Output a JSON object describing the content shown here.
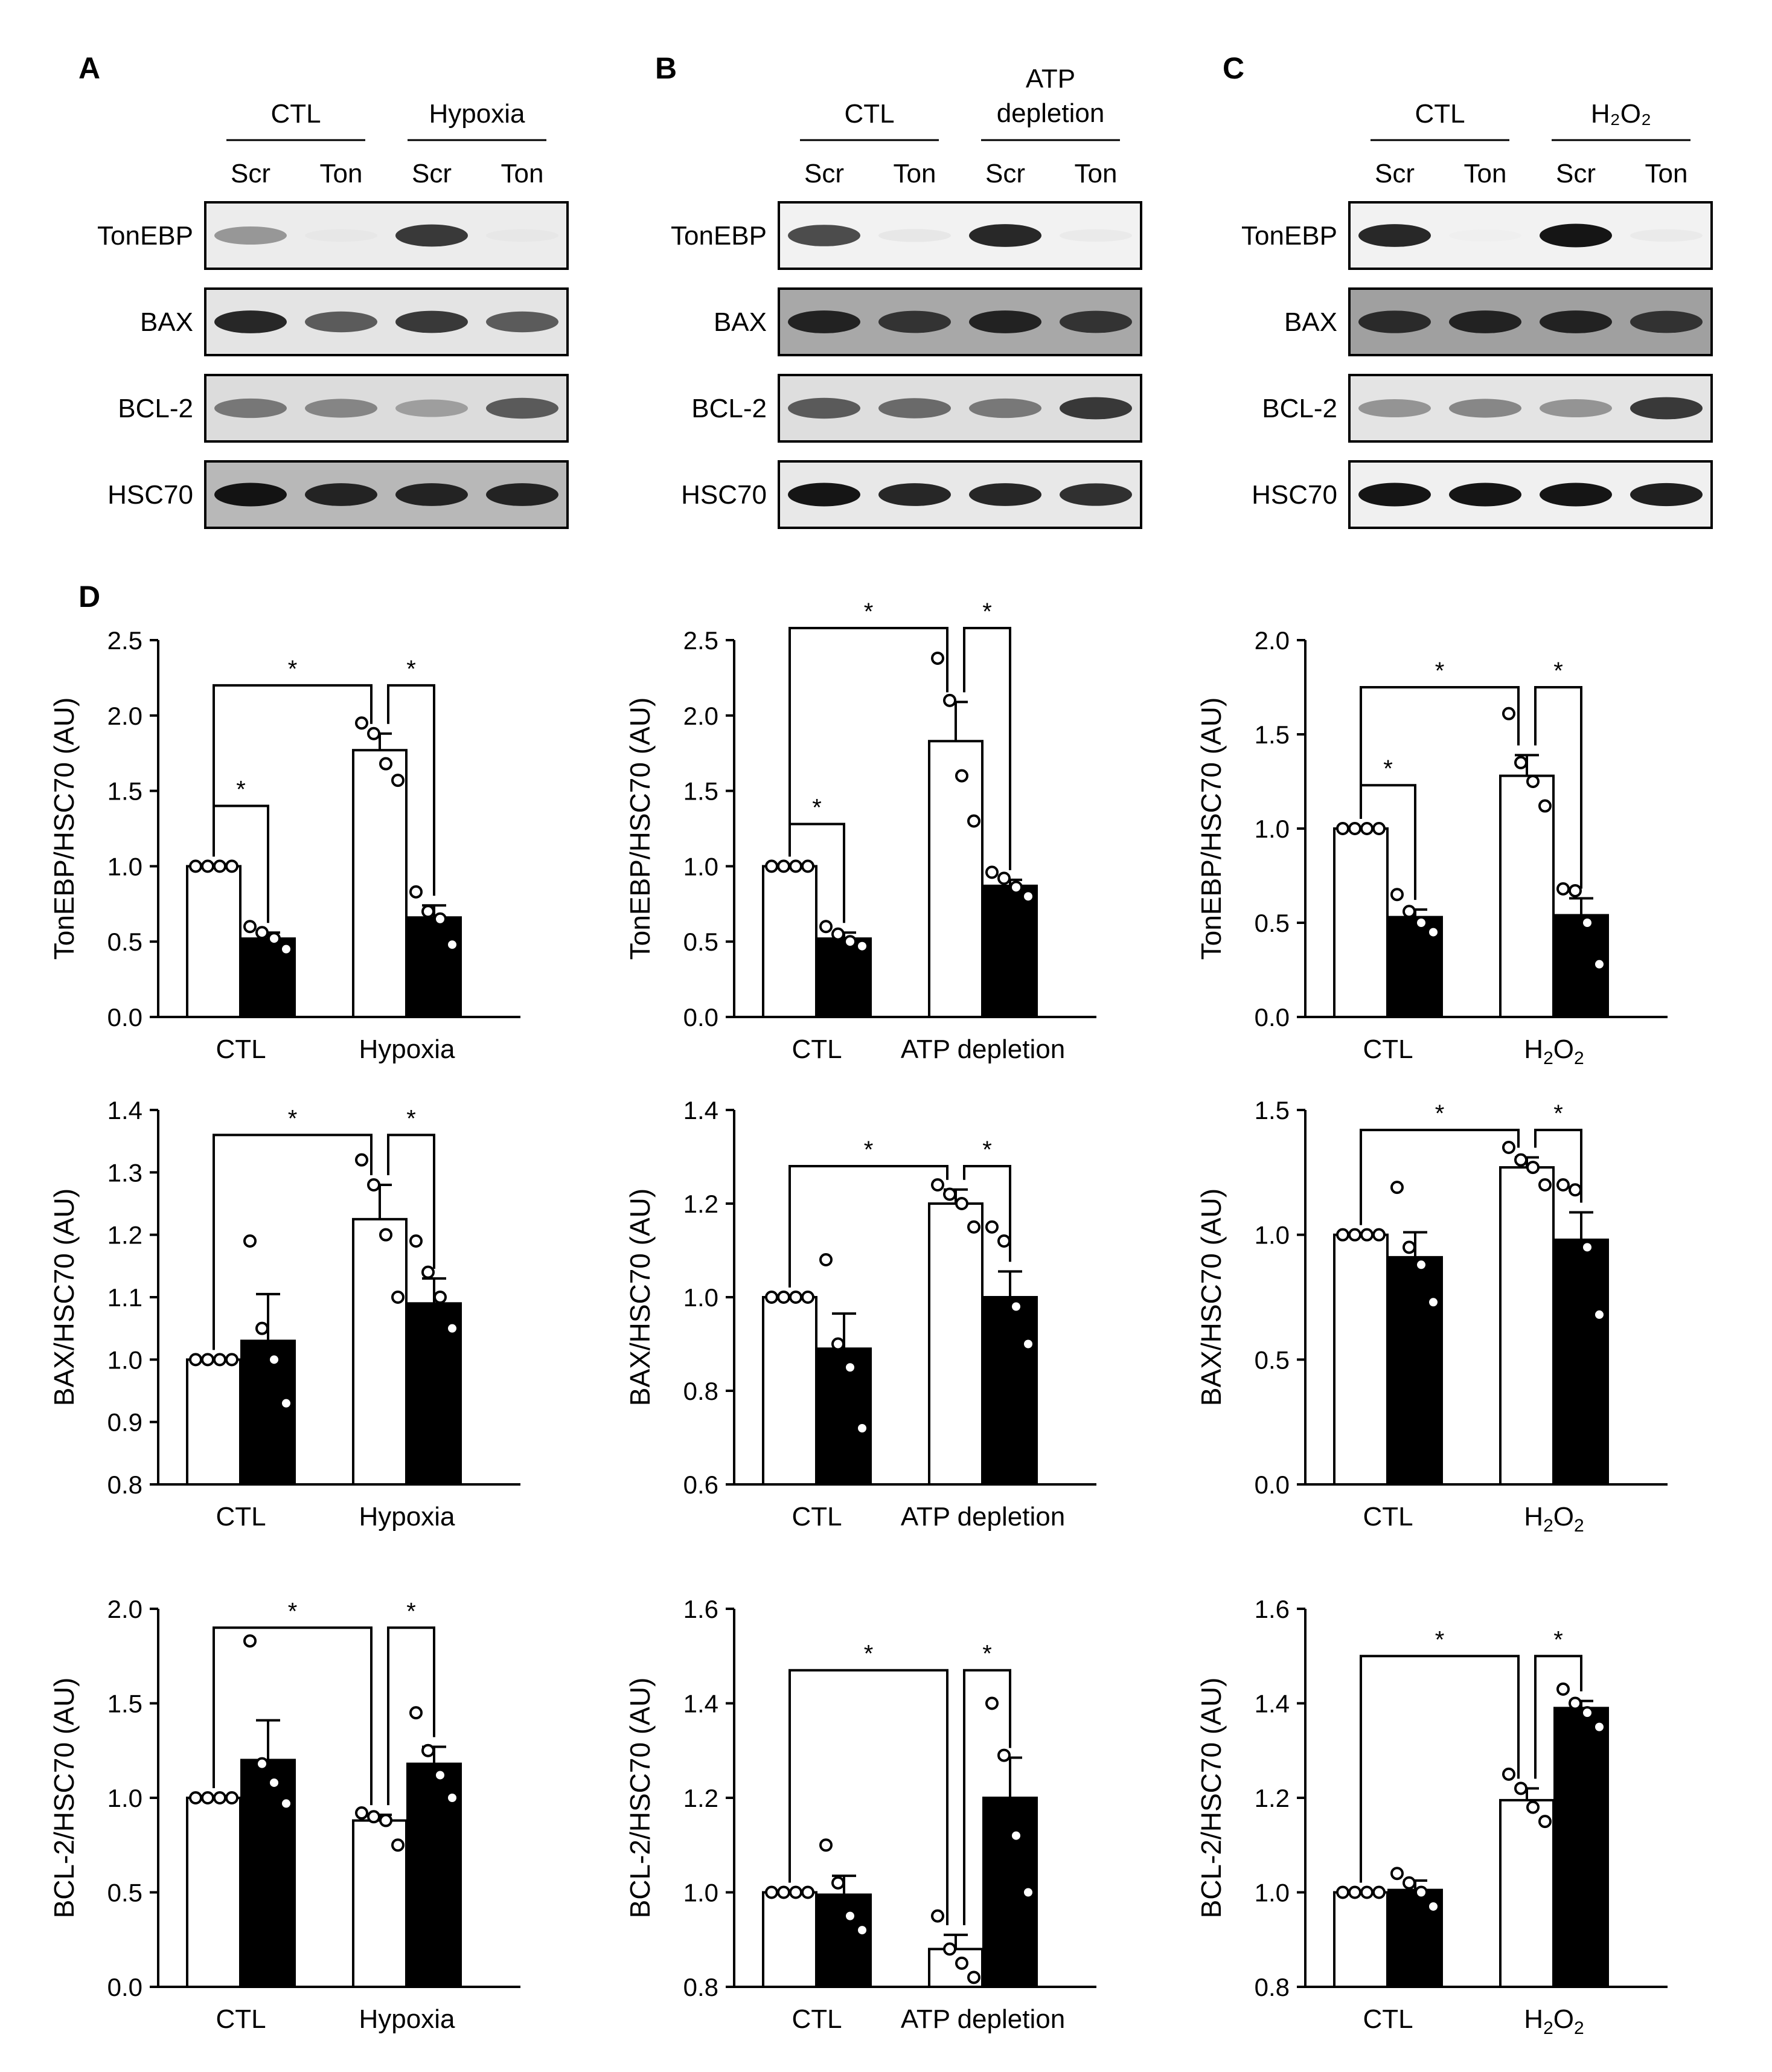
{
  "panel_letters": [
    "A",
    "B",
    "C",
    "D"
  ],
  "blots": [
    {
      "panel": "A",
      "groups": [
        "CTL",
        "Hypoxia"
      ],
      "lanes": [
        "Scr",
        "Ton",
        "Scr",
        "Ton"
      ],
      "rows": [
        {
          "label": "TonEBP",
          "bands": [
            0.55,
            0.12,
            0.85,
            0.12
          ],
          "bg": "#ececec"
        },
        {
          "label": "BAX",
          "bands": [
            0.9,
            0.75,
            0.85,
            0.75
          ],
          "bg": "#e4e4e4"
        },
        {
          "label": "BCL-2",
          "bands": [
            0.65,
            0.6,
            0.5,
            0.75
          ],
          "bg": "#dcdcdc"
        },
        {
          "label": "HSC70",
          "bands": [
            0.95,
            0.9,
            0.9,
            0.9
          ],
          "bg": "#b8b8b8"
        }
      ]
    },
    {
      "panel": "B",
      "groups": [
        "CTL",
        "ATP depletion"
      ],
      "lanes": [
        "Scr",
        "Ton",
        "Scr",
        "Ton"
      ],
      "rows": [
        {
          "label": "TonEBP",
          "bands": [
            0.8,
            0.15,
            0.9,
            0.12
          ],
          "bg": "#f2f2f2"
        },
        {
          "label": "BAX",
          "bands": [
            0.9,
            0.85,
            0.9,
            0.85
          ],
          "bg": "#a8a8a8"
        },
        {
          "label": "BCL-2",
          "bands": [
            0.75,
            0.7,
            0.65,
            0.85
          ],
          "bg": "#dedede"
        },
        {
          "label": "HSC70",
          "bands": [
            0.95,
            0.9,
            0.9,
            0.88
          ],
          "bg": "#e8e8e8"
        }
      ]
    },
    {
      "panel": "C",
      "groups": [
        "CTL",
        "H₂O₂"
      ],
      "lanes": [
        "Scr",
        "Ton",
        "Scr",
        "Ton"
      ],
      "rows": [
        {
          "label": "TonEBP",
          "bands": [
            0.9,
            0.08,
            0.95,
            0.12
          ],
          "bg": "#f2f2f2"
        },
        {
          "label": "BAX",
          "bands": [
            0.88,
            0.9,
            0.9,
            0.85
          ],
          "bg": "#a0a0a0"
        },
        {
          "label": "BCL-2",
          "bands": [
            0.55,
            0.6,
            0.55,
            0.85
          ],
          "bg": "#e4e4e4"
        },
        {
          "label": "HSC70",
          "bands": [
            0.95,
            0.95,
            0.95,
            0.92
          ],
          "bg": "#f0f0f0"
        }
      ]
    }
  ],
  "chart_data": [
    {
      "type": "bar",
      "ylabel": "TonEBP/HSC70 (AU)",
      "categories": [
        "CTL",
        "Hypoxia"
      ],
      "ylim": [
        0,
        2.5
      ],
      "yticks": [
        "0.0",
        "0.5",
        "1.0",
        "1.5",
        "2.0",
        "2.5"
      ],
      "series": [
        {
          "fill": "white",
          "values": [
            1.0,
            1.77
          ],
          "errors": [
            0,
            0.11
          ],
          "points": [
            [
              1.0,
              1.0,
              1.0,
              1.0
            ],
            [
              1.95,
              1.88,
              1.68,
              1.57
            ]
          ]
        },
        {
          "fill": "black",
          "values": [
            0.52,
            0.66
          ],
          "errors": [
            0.04,
            0.08
          ],
          "points": [
            [
              0.6,
              0.56,
              0.52,
              0.45
            ],
            [
              0.83,
              0.7,
              0.65,
              0.48
            ]
          ]
        }
      ],
      "sig": [
        {
          "from": [
            0,
            0
          ],
          "to": [
            0,
            1
          ],
          "h": 1.4,
          "label": "*"
        },
        {
          "from": [
            0,
            0
          ],
          "to": [
            1,
            0
          ],
          "h": 2.2,
          "label": "*"
        },
        {
          "from": [
            1,
            0
          ],
          "to": [
            1,
            1
          ],
          "h": 2.2,
          "label": "*"
        }
      ]
    },
    {
      "type": "bar",
      "ylabel": "TonEBP/HSC70 (AU)",
      "categories": [
        "CTL",
        "ATP depletion"
      ],
      "ylim": [
        0,
        2.5
      ],
      "yticks": [
        "0.0",
        "0.5",
        "1.0",
        "1.5",
        "2.0",
        "2.5"
      ],
      "series": [
        {
          "fill": "white",
          "values": [
            1.0,
            1.83
          ],
          "errors": [
            0,
            0.26
          ],
          "points": [
            [
              1.0,
              1.0,
              1.0,
              1.0
            ],
            [
              2.38,
              2.1,
              1.6,
              1.3
            ]
          ]
        },
        {
          "fill": "black",
          "values": [
            0.52,
            0.87
          ],
          "errors": [
            0.04,
            0.04
          ],
          "points": [
            [
              0.6,
              0.55,
              0.5,
              0.47
            ],
            [
              0.96,
              0.92,
              0.86,
              0.8
            ]
          ]
        }
      ],
      "sig": [
        {
          "from": [
            0,
            0
          ],
          "to": [
            0,
            1
          ],
          "h": 1.28,
          "label": "*"
        },
        {
          "from": [
            0,
            0
          ],
          "to": [
            1,
            0
          ],
          "h": 2.58,
          "label": "*"
        },
        {
          "from": [
            1,
            0
          ],
          "to": [
            1,
            1
          ],
          "h": 2.58,
          "label": "*"
        }
      ]
    },
    {
      "type": "bar",
      "ylabel": "TonEBP/HSC70 (AU)",
      "categories": [
        "CTL",
        "H₂O₂"
      ],
      "ylim": [
        0,
        2.0
      ],
      "yticks": [
        "0.0",
        "0.5",
        "1.0",
        "1.5",
        "2.0"
      ],
      "series": [
        {
          "fill": "white",
          "values": [
            1.0,
            1.28
          ],
          "errors": [
            0,
            0.11
          ],
          "points": [
            [
              1.0,
              1.0,
              1.0,
              1.0
            ],
            [
              1.61,
              1.35,
              1.25,
              1.12
            ]
          ]
        },
        {
          "fill": "black",
          "values": [
            0.53,
            0.54
          ],
          "errors": [
            0.04,
            0.09
          ],
          "points": [
            [
              0.65,
              0.56,
              0.5,
              0.45
            ],
            [
              0.68,
              0.67,
              0.5,
              0.28
            ]
          ]
        }
      ],
      "sig": [
        {
          "from": [
            0,
            0
          ],
          "to": [
            0,
            1
          ],
          "h": 1.23,
          "label": "*"
        },
        {
          "from": [
            0,
            0
          ],
          "to": [
            1,
            0
          ],
          "h": 1.75,
          "label": "*"
        },
        {
          "from": [
            1,
            0
          ],
          "to": [
            1,
            1
          ],
          "h": 1.75,
          "label": "*"
        }
      ]
    },
    {
      "type": "bar",
      "ylabel": "BAX/HSC70 (AU)",
      "categories": [
        "CTL",
        "Hypoxia"
      ],
      "ylim": [
        0.8,
        1.4
      ],
      "yticks": [
        "0.8",
        "0.9",
        "1.0",
        "1.1",
        "1.2",
        "1.3",
        "1.4"
      ],
      "series": [
        {
          "fill": "white",
          "values": [
            1.0,
            1.225
          ],
          "errors": [
            0,
            0.055
          ],
          "points": [
            [
              1.0,
              1.0,
              1.0,
              1.0
            ],
            [
              1.32,
              1.28,
              1.2,
              1.1
            ]
          ]
        },
        {
          "fill": "black",
          "values": [
            1.03,
            1.09
          ],
          "errors": [
            0.075,
            0.04
          ],
          "points": [
            [
              1.19,
              1.05,
              1.0,
              0.93
            ],
            [
              1.19,
              1.14,
              1.1,
              1.05
            ]
          ]
        }
      ],
      "sig": [
        {
          "from": [
            0,
            0
          ],
          "to": [
            1,
            0
          ],
          "h": 1.36,
          "label": "*"
        },
        {
          "from": [
            1,
            0
          ],
          "to": [
            1,
            1
          ],
          "h": 1.36,
          "label": "*"
        }
      ]
    },
    {
      "type": "bar",
      "ylabel": "BAX/HSC70 (AU)",
      "categories": [
        "CTL",
        "ATP depletion"
      ],
      "ylim": [
        0.6,
        1.4
      ],
      "yticks": [
        "0.6",
        "0.8",
        "1.0",
        "1.2",
        "1.4"
      ],
      "series": [
        {
          "fill": "white",
          "values": [
            1.0,
            1.2
          ],
          "errors": [
            0,
            0.03
          ],
          "points": [
            [
              1.0,
              1.0,
              1.0,
              1.0
            ],
            [
              1.24,
              1.22,
              1.2,
              1.15
            ]
          ]
        },
        {
          "fill": "black",
          "values": [
            0.89,
            1.0
          ],
          "errors": [
            0.075,
            0.055
          ],
          "points": [
            [
              1.08,
              0.9,
              0.85,
              0.72
            ],
            [
              1.15,
              1.12,
              0.98,
              0.9
            ]
          ]
        }
      ],
      "sig": [
        {
          "from": [
            0,
            0
          ],
          "to": [
            1,
            0
          ],
          "h": 1.28,
          "label": "*"
        },
        {
          "from": [
            1,
            0
          ],
          "to": [
            1,
            1
          ],
          "h": 1.28,
          "label": "*"
        }
      ]
    },
    {
      "type": "bar",
      "ylabel": "BAX/HSC70 (AU)",
      "categories": [
        "CTL",
        "H₂O₂"
      ],
      "ylim": [
        0.0,
        1.5
      ],
      "yticks": [
        "0.0",
        "0.5",
        "1.0",
        "1.5"
      ],
      "series": [
        {
          "fill": "white",
          "values": [
            1.0,
            1.27
          ],
          "errors": [
            0,
            0.04
          ],
          "points": [
            [
              1.0,
              1.0,
              1.0,
              1.0
            ],
            [
              1.35,
              1.3,
              1.27,
              1.2
            ]
          ]
        },
        {
          "fill": "black",
          "values": [
            0.91,
            0.98
          ],
          "errors": [
            0.1,
            0.11
          ],
          "points": [
            [
              1.19,
              0.95,
              0.88,
              0.73
            ],
            [
              1.2,
              1.18,
              0.95,
              0.68
            ]
          ]
        }
      ],
      "sig": [
        {
          "from": [
            0,
            0
          ],
          "to": [
            1,
            0
          ],
          "h": 1.42,
          "label": "*"
        },
        {
          "from": [
            1,
            0
          ],
          "to": [
            1,
            1
          ],
          "h": 1.42,
          "label": "*"
        }
      ]
    },
    {
      "type": "bar",
      "ylabel": "BCL-2/HSC70 (AU)",
      "categories": [
        "CTL",
        "Hypoxia"
      ],
      "ylim": [
        0.0,
        2.0
      ],
      "yticks": [
        "0.0",
        "0.5",
        "1.0",
        "1.5",
        "2.0"
      ],
      "series": [
        {
          "fill": "white",
          "values": [
            1.0,
            0.88
          ],
          "errors": [
            0,
            0.03
          ],
          "points": [
            [
              1.0,
              1.0,
              1.0,
              1.0
            ],
            [
              0.92,
              0.9,
              0.88,
              0.75
            ]
          ]
        },
        {
          "fill": "black",
          "values": [
            1.2,
            1.18
          ],
          "errors": [
            0.21,
            0.09
          ],
          "points": [
            [
              1.83,
              1.18,
              1.08,
              0.97
            ],
            [
              1.45,
              1.25,
              1.12,
              1.0
            ]
          ]
        }
      ],
      "sig": [
        {
          "from": [
            0,
            0
          ],
          "to": [
            1,
            0
          ],
          "h": 1.9,
          "label": "*"
        },
        {
          "from": [
            1,
            0
          ],
          "to": [
            1,
            1
          ],
          "h": 1.9,
          "label": "*"
        }
      ]
    },
    {
      "type": "bar",
      "ylabel": "BCL-2/HSC70 (AU)",
      "categories": [
        "CTL",
        "ATP depletion"
      ],
      "ylim": [
        0.8,
        1.6
      ],
      "yticks": [
        "0.8",
        "1.0",
        "1.2",
        "1.4",
        "1.6"
      ],
      "series": [
        {
          "fill": "white",
          "values": [
            1.0,
            0.88
          ],
          "errors": [
            0,
            0.03
          ],
          "points": [
            [
              1.0,
              1.0,
              1.0,
              1.0
            ],
            [
              0.95,
              0.88,
              0.85,
              0.82
            ]
          ]
        },
        {
          "fill": "black",
          "values": [
            0.995,
            1.2
          ],
          "errors": [
            0.04,
            0.085
          ],
          "points": [
            [
              1.1,
              1.02,
              0.95,
              0.92
            ],
            [
              1.4,
              1.29,
              1.12,
              1.0
            ]
          ]
        }
      ],
      "sig": [
        {
          "from": [
            0,
            0
          ],
          "to": [
            1,
            0
          ],
          "h": 1.47,
          "label": "*"
        },
        {
          "from": [
            1,
            0
          ],
          "to": [
            1,
            1
          ],
          "h": 1.47,
          "label": "*"
        }
      ]
    },
    {
      "type": "bar",
      "ylabel": "BCL-2/HSC70 (AU)",
      "categories": [
        "CTL",
        "H₂O₂"
      ],
      "ylim": [
        0.8,
        1.6
      ],
      "yticks": [
        "0.8",
        "1.0",
        "1.2",
        "1.4",
        "1.6"
      ],
      "series": [
        {
          "fill": "white",
          "values": [
            1.0,
            1.195
          ],
          "errors": [
            0,
            0.025
          ],
          "points": [
            [
              1.0,
              1.0,
              1.0,
              1.0
            ],
            [
              1.25,
              1.22,
              1.18,
              1.15
            ]
          ]
        },
        {
          "fill": "black",
          "values": [
            1.005,
            1.39
          ],
          "errors": [
            0.02,
            0.015
          ],
          "points": [
            [
              1.04,
              1.02,
              1.0,
              0.97
            ],
            [
              1.43,
              1.4,
              1.38,
              1.35
            ]
          ]
        }
      ],
      "sig": [
        {
          "from": [
            0,
            0
          ],
          "to": [
            1,
            0
          ],
          "h": 1.5,
          "label": "*"
        },
        {
          "from": [
            1,
            0
          ],
          "to": [
            1,
            1
          ],
          "h": 1.5,
          "label": "*"
        }
      ]
    }
  ]
}
